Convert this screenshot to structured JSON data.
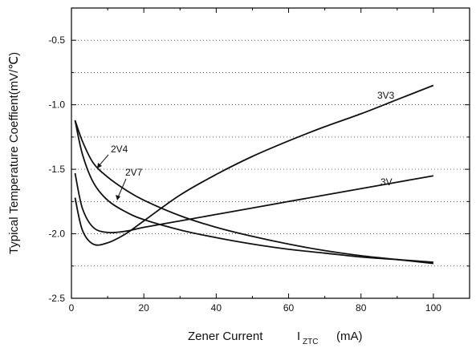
{
  "chart_data": {
    "type": "line",
    "title": "",
    "xlabel": "Zener Current",
    "xlabel_sub_main": "I",
    "xlabel_sub_script": "ZTC",
    "xlabel_unit": "(mA)",
    "ylabel": "Typical Temperature Coeffient(mV/℃)",
    "xlim": [
      0,
      110
    ],
    "ylim": [
      -2.5,
      -0.25
    ],
    "x_ticks": [
      0,
      20,
      40,
      60,
      80,
      100
    ],
    "x_tick_labels": [
      "0",
      "20",
      "40",
      "60",
      "80",
      "100"
    ],
    "y_ticks": [
      -2.5,
      -2.0,
      -1.5,
      -1.0,
      -0.5
    ],
    "y_tick_labels": [
      "-2.5",
      "-2.0",
      "-1.5",
      "-1.0",
      "-0.5"
    ],
    "grid": "horizontal-dotted",
    "series": [
      {
        "name": "3V3",
        "x": [
          1,
          3,
          6,
          10,
          15,
          20,
          30,
          40,
          50,
          60,
          70,
          80,
          90,
          100
        ],
        "y": [
          -1.72,
          -1.97,
          -2.08,
          -2.07,
          -2.0,
          -1.9,
          -1.7,
          -1.54,
          -1.4,
          -1.28,
          -1.17,
          -1.07,
          -0.96,
          -0.85
        ]
      },
      {
        "name": "3V",
        "x": [
          1,
          3,
          6,
          10,
          15,
          20,
          30,
          40,
          50,
          60,
          70,
          80,
          90,
          100
        ],
        "y": [
          -1.53,
          -1.8,
          -1.95,
          -1.99,
          -1.98,
          -1.95,
          -1.9,
          -1.85,
          -1.8,
          -1.75,
          -1.7,
          -1.65,
          -1.6,
          -1.55
        ]
      },
      {
        "name": "2V7",
        "x": [
          1,
          3,
          6,
          10,
          15,
          20,
          30,
          40,
          50,
          60,
          70,
          80,
          90,
          100
        ],
        "y": [
          -1.12,
          -1.38,
          -1.6,
          -1.74,
          -1.83,
          -1.89,
          -1.97,
          -2.03,
          -2.08,
          -2.12,
          -2.15,
          -2.18,
          -2.2,
          -2.22
        ]
      },
      {
        "name": "2V4",
        "x": [
          1,
          3,
          6,
          10,
          15,
          20,
          30,
          40,
          50,
          60,
          70,
          80,
          90,
          100
        ],
        "y": [
          -1.12,
          -1.28,
          -1.45,
          -1.56,
          -1.66,
          -1.74,
          -1.86,
          -1.95,
          -2.02,
          -2.08,
          -2.13,
          -2.17,
          -2.2,
          -2.23
        ]
      }
    ]
  }
}
